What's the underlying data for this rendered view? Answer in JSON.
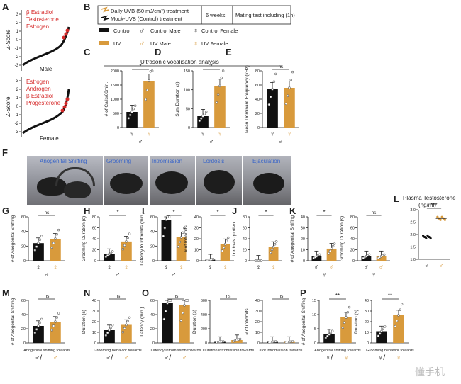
{
  "figure": {
    "panel_letters": [
      "A",
      "B",
      "C",
      "D",
      "E",
      "F",
      "G",
      "H",
      "I",
      "J",
      "K",
      "L",
      "M",
      "N",
      "O",
      "P"
    ],
    "panel_a": {
      "top": {
        "ylabel": "Z-Score",
        "caption": "Male",
        "hormones": [
          "β Estradiol",
          "Testosterone",
          "Estrogen"
        ]
      },
      "bottom": {
        "ylabel": "Z-Score",
        "caption": "Female",
        "hormones": [
          "Estrogen",
          "Androgen",
          "β Estradiol",
          "Progesterone"
        ]
      },
      "yticks": [
        "3",
        "2",
        "1",
        "0",
        "-1",
        "-2",
        "-3"
      ]
    },
    "panel_b": {
      "uvb_label": "Daily UVB  (50 mJ/cm²) treatment",
      "mock_label": "Mock-UVB (Control)  treatment",
      "duration": "6 weeks",
      "mating": "Mating test including (1h)",
      "legend": {
        "control": "Control",
        "control_male": "Control Male",
        "control_female": "Control Female",
        "uv": "UV",
        "uv_male": "UV Male",
        "uv_female": "UV Female"
      }
    },
    "usv_title": "Ultrasonic vocalisation analysis",
    "panel_f": {
      "behaviors": [
        "Anogenital Sniffing",
        "Grooming",
        "Intromission",
        "Lordosis",
        "Ejaculation"
      ]
    },
    "plasma": {
      "title": "Plasma Testosterone",
      "unit": "(ng/ml)",
      "yticks": [
        "3.0",
        "2.5",
        "2.0",
        "1.5",
        "1.0"
      ],
      "sig": "***"
    },
    "watermark": "懂手机"
  },
  "chart_data": [
    {
      "panel": "C",
      "type": "bar",
      "ylabel": "# of Calls/60min.",
      "yticks": [
        "2000",
        "1500",
        "1000",
        "500",
        "0"
      ],
      "ylim": [
        0,
        2000
      ],
      "categories": [
        "Control",
        "UV"
      ],
      "values": [
        550,
        1650
      ],
      "sig": "*"
    },
    {
      "panel": "D",
      "type": "bar",
      "ylabel": "Sum Duration (s)",
      "yticks": [
        "150",
        "100",
        "50",
        "0"
      ],
      "ylim": [
        0,
        150
      ],
      "categories": [
        "Control",
        "UV"
      ],
      "values": [
        30,
        110
      ],
      "sig": "*"
    },
    {
      "panel": "E",
      "type": "bar",
      "ylabel": "Mean Dominant Frequency (kHz)",
      "yticks": [
        "80",
        "60",
        "40",
        "20",
        "0"
      ],
      "ylim": [
        0,
        80
      ],
      "categories": [
        "Control",
        "UV"
      ],
      "values": [
        54,
        56
      ],
      "sig": "ns"
    },
    {
      "panel": "G",
      "type": "bar",
      "ylabel": "# of Anogenital Sniffing",
      "yticks": [
        "60",
        "40",
        "20",
        "0"
      ],
      "ylim": [
        0,
        60
      ],
      "categories": [
        "Control",
        "UV"
      ],
      "values": [
        24,
        30
      ],
      "sig": "ns"
    },
    {
      "panel": "H",
      "type": "bar",
      "ylabel": "Grooming Duration (s)",
      "yticks": [
        "80",
        "60",
        "40",
        "20",
        "0"
      ],
      "ylim": [
        0,
        80
      ],
      "categories": [
        "Control",
        "UV"
      ],
      "values": [
        12,
        35
      ],
      "sig": "*"
    },
    {
      "panel": "I1",
      "type": "bar",
      "ylabel": "Latency to Intromits (min.)",
      "yticks": [
        "60",
        "40",
        "20",
        "0"
      ],
      "ylim": [
        0,
        60
      ],
      "categories": [
        "Control",
        "UV"
      ],
      "values": [
        56,
        32
      ],
      "sig": "*"
    },
    {
      "panel": "I2",
      "type": "bar",
      "ylabel": "# of Intromits",
      "yticks": [
        "40",
        "30",
        "20",
        "10",
        "0"
      ],
      "ylim": [
        0,
        40
      ],
      "categories": [
        "Control",
        "UV"
      ],
      "values": [
        1,
        15
      ],
      "sig": "*"
    },
    {
      "panel": "J",
      "type": "bar",
      "ylabel": "Lordosis quotient",
      "yticks": [
        "80",
        "60",
        "40",
        "20",
        "0"
      ],
      "ylim": [
        0,
        80
      ],
      "categories": [
        "Control",
        "UV"
      ],
      "values": [
        0,
        25
      ],
      "sig": "*"
    },
    {
      "panel": "K1",
      "type": "bar",
      "ylabel": "# of Anogenital Sniffing",
      "yticks": [
        "40",
        "30",
        "20",
        "10",
        "0"
      ],
      "ylim": [
        0,
        40
      ],
      "categories": [
        "Control",
        "UV"
      ],
      "values": [
        4,
        11
      ],
      "sig": "*"
    },
    {
      "panel": "K2",
      "type": "bar",
      "ylabel": "Grooming Duration (s)",
      "yticks": [
        "80",
        "60",
        "40",
        "20",
        "0"
      ],
      "ylim": [
        0,
        80
      ],
      "categories": [
        "Control",
        "UV"
      ],
      "values": [
        8,
        8
      ],
      "sig": "ns"
    },
    {
      "panel": "M",
      "type": "bar",
      "ylabel": "# of Anogenital Sniffing",
      "xlabel": "Anogenital sniffing towards",
      "yticks": [
        "60",
        "40",
        "20",
        "0"
      ],
      "ylim": [
        0,
        60
      ],
      "categories": [
        "Control",
        "UV"
      ],
      "values": [
        24,
        30
      ],
      "sig": "ns"
    },
    {
      "panel": "N",
      "type": "bar",
      "ylabel": "Duration (s)",
      "xlabel": "Grooming behavior towards",
      "yticks": [
        "40",
        "30",
        "20",
        "10",
        "0"
      ],
      "ylim": [
        0,
        40
      ],
      "categories": [
        "Control",
        "UV"
      ],
      "values": [
        12,
        17
      ],
      "sig": "ns"
    },
    {
      "panel": "O1",
      "type": "bar",
      "ylabel": "Latency (min.)",
      "xlabel": "Latency intromission towards",
      "yticks": [
        "60",
        "40",
        "20",
        "0"
      ],
      "ylim": [
        0,
        60
      ],
      "categories": [
        "Control",
        "UV"
      ],
      "values": [
        56,
        53
      ],
      "sig": "ns"
    },
    {
      "panel": "O2",
      "type": "bar",
      "ylabel": "Duration (s)",
      "xlabel": "Duration intromission towards",
      "yticks": [
        "600",
        "400",
        "200",
        "0"
      ],
      "ylim": [
        0,
        600
      ],
      "categories": [
        "Control",
        "UV"
      ],
      "values": [
        15,
        40
      ],
      "sig": "ns"
    },
    {
      "panel": "O3",
      "type": "bar",
      "ylabel": "# of intromits",
      "xlabel": "# of intromission towards",
      "yticks": [
        "40",
        "30",
        "20",
        "10",
        "0"
      ],
      "ylim": [
        0,
        40
      ],
      "categories": [
        "Control",
        "UV"
      ],
      "values": [
        1,
        1
      ],
      "sig": "ns"
    },
    {
      "panel": "P1",
      "type": "bar",
      "ylabel": "# of Anogenital Sniffing",
      "xlabel": "Anogenital sniffing towards",
      "yticks": [
        "15",
        "10",
        "5",
        "0"
      ],
      "ylim": [
        0,
        15
      ],
      "categories": [
        "Control",
        "UV"
      ],
      "values": [
        3,
        9
      ],
      "sig": "**"
    },
    {
      "panel": "P2",
      "type": "bar",
      "ylabel": "Duration (s)",
      "xlabel": "Grooming behavior towards",
      "yticks": [
        "40",
        "30",
        "20",
        "10",
        "0"
      ],
      "ylim": [
        0,
        40
      ],
      "categories": [
        "Control",
        "UV"
      ],
      "values": [
        11,
        26
      ],
      "sig": "**"
    },
    {
      "panel": "L",
      "type": "scatter",
      "ylabel": "",
      "yticks": [
        "3.0",
        "2.5",
        "2.0",
        "1.5",
        "1.0"
      ],
      "ylim": [
        1.0,
        3.0
      ],
      "categories": [
        "Control",
        "UV"
      ],
      "values": [
        1.9,
        2.65
      ],
      "sig": "***"
    }
  ]
}
